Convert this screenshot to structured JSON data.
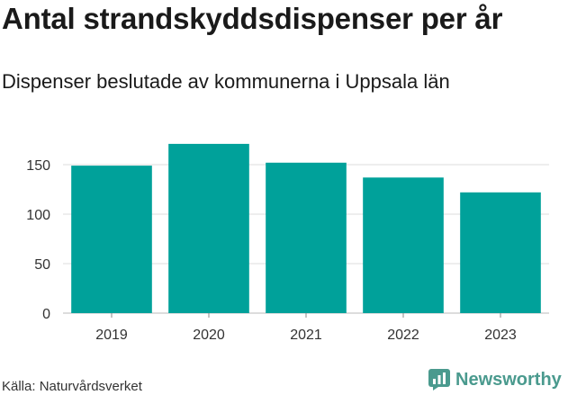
{
  "header": {
    "title": "Antal strandskyddsdispenser per år",
    "subtitle": "Dispenser beslutade av kommunerna i Uppsala län"
  },
  "footer": {
    "source": "Källa: Naturvårdsverket",
    "brand": "Newsworthy"
  },
  "colors": {
    "bar": "#00a19a",
    "grid": "#dddddd",
    "brand": "#4a9a8e"
  },
  "chart_data": {
    "type": "bar",
    "title": "Antal strandskyddsdispenser per år",
    "subtitle": "Dispenser beslutade av kommunerna i Uppsala län",
    "categories": [
      "2019",
      "2020",
      "2021",
      "2022",
      "2023"
    ],
    "values": [
      149,
      171,
      152,
      137,
      122
    ],
    "xlabel": "",
    "ylabel": "",
    "ylim": [
      0,
      180
    ],
    "yticks": [
      0,
      50,
      100,
      150
    ],
    "grid": true,
    "legend": "none"
  }
}
